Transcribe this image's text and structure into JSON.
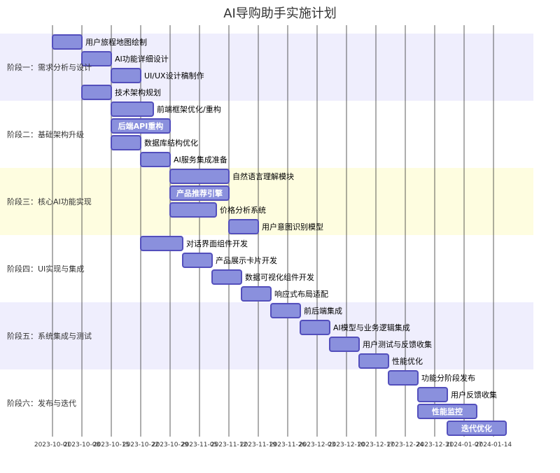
{
  "chart_data": {
    "type": "gantt",
    "title": "AI导购助手实施计划",
    "x_ticks": [
      "2023-10-01",
      "2023-10-08",
      "2023-10-15",
      "2023-10-22",
      "2023-10-29",
      "2023-11-05",
      "2023-11-12",
      "2023-11-19",
      "2023-11-26",
      "2023-12-03",
      "2023-12-10",
      "2023-12-17",
      "2023-12-24",
      "2023-12-31",
      "2024-01-07",
      "2024-01-14"
    ],
    "x_range": [
      "2023-10-01",
      "2024-01-18"
    ],
    "colors": {
      "bar_fill": "#8a90dd",
      "bar_stroke": "#534fbc",
      "section_odd": "#efeefd",
      "section_highlight": "#fefde0",
      "section_even": "#ffffff",
      "grid": "#333333"
    },
    "sections": [
      {
        "name": "阶段一：需求分析与设计",
        "tasks": [
          {
            "name": "用户旅程地图绘制",
            "start": "2023-10-01",
            "end": "2023-10-08",
            "label_inside": false
          },
          {
            "name": "AI功能详细设计",
            "start": "2023-10-08",
            "end": "2023-10-15",
            "label_inside": false
          },
          {
            "name": "UI/UX设计稿制作",
            "start": "2023-10-15",
            "end": "2023-10-22",
            "label_inside": false
          },
          {
            "name": "技术架构规划",
            "start": "2023-10-08",
            "end": "2023-10-15",
            "label_inside": false
          }
        ]
      },
      {
        "name": "阶段二：基础架构升级",
        "tasks": [
          {
            "name": "前端框架优化/重构",
            "start": "2023-10-15",
            "end": "2023-10-25",
            "label_inside": false
          },
          {
            "name": "后端API重构",
            "start": "2023-10-15",
            "end": "2023-10-29",
            "label_inside": true
          },
          {
            "name": "数据库结构优化",
            "start": "2023-10-15",
            "end": "2023-10-22",
            "label_inside": false
          },
          {
            "name": "AI服务集成准备",
            "start": "2023-10-22",
            "end": "2023-10-29",
            "label_inside": false
          }
        ]
      },
      {
        "name": "阶段三：核心AI功能实现",
        "tasks": [
          {
            "name": "自然语言理解模块",
            "start": "2023-10-29",
            "end": "2023-11-12",
            "label_inside": false
          },
          {
            "name": "产品推荐引擎",
            "start": "2023-10-29",
            "end": "2023-11-12",
            "label_inside": true
          },
          {
            "name": "价格分析系统",
            "start": "2023-10-29",
            "end": "2023-11-09",
            "label_inside": false
          },
          {
            "name": "用户意图识别模型",
            "start": "2023-11-12",
            "end": "2023-11-19",
            "label_inside": false
          }
        ]
      },
      {
        "name": "阶段四：UI实现与集成",
        "tasks": [
          {
            "name": "对话界面组件开发",
            "start": "2023-10-22",
            "end": "2023-11-01",
            "label_inside": false
          },
          {
            "name": "产品展示卡片开发",
            "start": "2023-11-01",
            "end": "2023-11-08",
            "label_inside": false
          },
          {
            "name": "数据可视化组件开发",
            "start": "2023-11-08",
            "end": "2023-11-15",
            "label_inside": false
          },
          {
            "name": "响应式布局适配",
            "start": "2023-11-15",
            "end": "2023-11-22",
            "label_inside": false
          }
        ]
      },
      {
        "name": "阶段五：系统集成与测试",
        "tasks": [
          {
            "name": "前后端集成",
            "start": "2023-11-22",
            "end": "2023-11-29",
            "label_inside": false
          },
          {
            "name": "AI模型与业务逻辑集成",
            "start": "2023-11-29",
            "end": "2023-12-06",
            "label_inside": false
          },
          {
            "name": "用户测试与反馈收集",
            "start": "2023-12-06",
            "end": "2023-12-13",
            "label_inside": false
          },
          {
            "name": "性能优化",
            "start": "2023-12-13",
            "end": "2023-12-20",
            "label_inside": false
          }
        ]
      },
      {
        "name": "阶段六：发布与迭代",
        "tasks": [
          {
            "name": "功能分阶段发布",
            "start": "2023-12-20",
            "end": "2023-12-27",
            "label_inside": false
          },
          {
            "name": "用户反馈收集",
            "start": "2023-12-27",
            "end": "2024-01-03",
            "label_inside": false
          },
          {
            "name": "性能监控",
            "start": "2023-12-27",
            "end": "2024-01-10",
            "label_inside": true
          },
          {
            "name": "迭代优化",
            "start": "2024-01-03",
            "end": "2024-01-17",
            "label_inside": true
          }
        ]
      }
    ]
  }
}
